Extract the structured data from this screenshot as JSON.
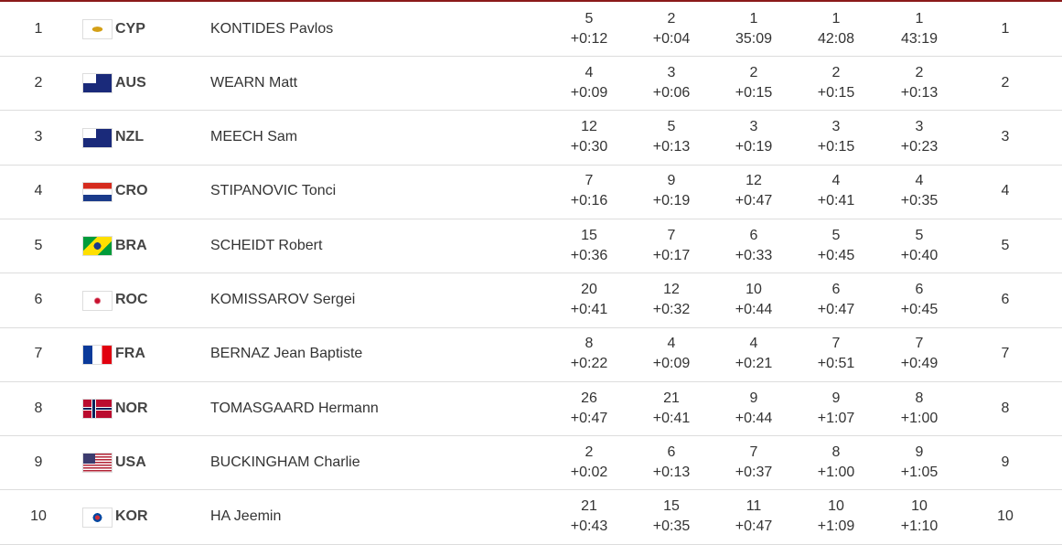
{
  "table": {
    "rows": [
      {
        "rank": 1,
        "noc": "CYP",
        "name": "KONTIDES Pavlos",
        "races": [
          {
            "pos": 5,
            "gap": "+0:12"
          },
          {
            "pos": 2,
            "gap": "+0:04"
          },
          {
            "pos": 1,
            "gap": "35:09"
          },
          {
            "pos": 1,
            "gap": "42:08"
          },
          {
            "pos": 1,
            "gap": "43:19"
          }
        ],
        "net": 1
      },
      {
        "rank": 2,
        "noc": "AUS",
        "name": "WEARN Matt",
        "races": [
          {
            "pos": 4,
            "gap": "+0:09"
          },
          {
            "pos": 3,
            "gap": "+0:06"
          },
          {
            "pos": 2,
            "gap": "+0:15"
          },
          {
            "pos": 2,
            "gap": "+0:15"
          },
          {
            "pos": 2,
            "gap": "+0:13"
          }
        ],
        "net": 2
      },
      {
        "rank": 3,
        "noc": "NZL",
        "name": "MEECH Sam",
        "races": [
          {
            "pos": 12,
            "gap": "+0:30"
          },
          {
            "pos": 5,
            "gap": "+0:13"
          },
          {
            "pos": 3,
            "gap": "+0:19"
          },
          {
            "pos": 3,
            "gap": "+0:15"
          },
          {
            "pos": 3,
            "gap": "+0:23"
          }
        ],
        "net": 3
      },
      {
        "rank": 4,
        "noc": "CRO",
        "name": "STIPANOVIC Tonci",
        "races": [
          {
            "pos": 7,
            "gap": "+0:16"
          },
          {
            "pos": 9,
            "gap": "+0:19"
          },
          {
            "pos": 12,
            "gap": "+0:47"
          },
          {
            "pos": 4,
            "gap": "+0:41"
          },
          {
            "pos": 4,
            "gap": "+0:35"
          }
        ],
        "net": 4
      },
      {
        "rank": 5,
        "noc": "BRA",
        "name": "SCHEIDT Robert",
        "races": [
          {
            "pos": 15,
            "gap": "+0:36"
          },
          {
            "pos": 7,
            "gap": "+0:17"
          },
          {
            "pos": 6,
            "gap": "+0:33"
          },
          {
            "pos": 5,
            "gap": "+0:45"
          },
          {
            "pos": 5,
            "gap": "+0:40"
          }
        ],
        "net": 5
      },
      {
        "rank": 6,
        "noc": "ROC",
        "name": "KOMISSAROV Sergei",
        "races": [
          {
            "pos": 20,
            "gap": "+0:41"
          },
          {
            "pos": 12,
            "gap": "+0:32"
          },
          {
            "pos": 10,
            "gap": "+0:44"
          },
          {
            "pos": 6,
            "gap": "+0:47"
          },
          {
            "pos": 6,
            "gap": "+0:45"
          }
        ],
        "net": 6
      },
      {
        "rank": 7,
        "noc": "FRA",
        "name": "BERNAZ Jean Baptiste",
        "races": [
          {
            "pos": 8,
            "gap": "+0:22"
          },
          {
            "pos": 4,
            "gap": "+0:09"
          },
          {
            "pos": 4,
            "gap": "+0:21"
          },
          {
            "pos": 7,
            "gap": "+0:51"
          },
          {
            "pos": 7,
            "gap": "+0:49"
          }
        ],
        "net": 7
      },
      {
        "rank": 8,
        "noc": "NOR",
        "name": "TOMASGAARD Hermann",
        "races": [
          {
            "pos": 26,
            "gap": "+0:47"
          },
          {
            "pos": 21,
            "gap": "+0:41"
          },
          {
            "pos": 9,
            "gap": "+0:44"
          },
          {
            "pos": 9,
            "gap": "+1:07"
          },
          {
            "pos": 8,
            "gap": "+1:00"
          }
        ],
        "net": 8
      },
      {
        "rank": 9,
        "noc": "USA",
        "name": "BUCKINGHAM Charlie",
        "races": [
          {
            "pos": 2,
            "gap": "+0:02"
          },
          {
            "pos": 6,
            "gap": "+0:13"
          },
          {
            "pos": 7,
            "gap": "+0:37"
          },
          {
            "pos": 8,
            "gap": "+1:00"
          },
          {
            "pos": 9,
            "gap": "+1:05"
          }
        ],
        "net": 9
      },
      {
        "rank": 10,
        "noc": "KOR",
        "name": "HA Jeemin",
        "races": [
          {
            "pos": 21,
            "gap": "+0:43"
          },
          {
            "pos": 15,
            "gap": "+0:35"
          },
          {
            "pos": 11,
            "gap": "+0:47"
          },
          {
            "pos": 10,
            "gap": "+1:09"
          },
          {
            "pos": 10,
            "gap": "+1:10"
          }
        ],
        "net": 10
      }
    ]
  }
}
